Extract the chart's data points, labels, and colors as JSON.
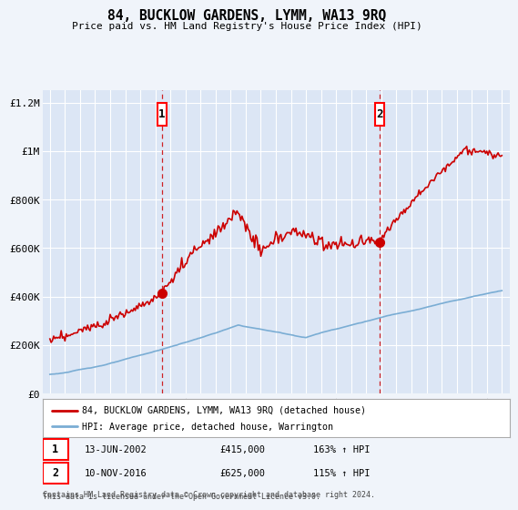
{
  "title": "84, BUCKLOW GARDENS, LYMM, WA13 9RQ",
  "subtitle": "Price paid vs. HM Land Registry's House Price Index (HPI)",
  "legend_line1": "84, BUCKLOW GARDENS, LYMM, WA13 9RQ (detached house)",
  "legend_line2": "HPI: Average price, detached house, Warrington",
  "sale1_date_label": "13-JUN-2002",
  "sale1_price": 415000,
  "sale1_x": 2002.45,
  "sale1_hpi_pct": "163% ↑ HPI",
  "sale2_date_label": "10-NOV-2016",
  "sale2_price": 625000,
  "sale2_x": 2016.87,
  "sale2_hpi_pct": "115% ↑ HPI",
  "footnote1": "Contains HM Land Registry data © Crown copyright and database right 2024.",
  "footnote2": "This data is licensed under the Open Government Licence v3.0.",
  "bg_color": "#f0f4fa",
  "plot_bg_color": "#dce6f5",
  "red_color": "#cc0000",
  "blue_color": "#7aadd4",
  "grid_color": "#ffffff",
  "ylim": [
    0,
    1250000
  ],
  "xlim": [
    1994.5,
    2025.5
  ],
  "yticks": [
    0,
    200000,
    400000,
    600000,
    800000,
    1000000,
    1200000
  ],
  "ytick_labels": [
    "£0",
    "£200K",
    "£400K",
    "£600K",
    "£800K",
    "£1M",
    "£1.2M"
  ],
  "xticks": [
    1995,
    1996,
    1997,
    1998,
    1999,
    2000,
    2001,
    2002,
    2003,
    2004,
    2005,
    2006,
    2007,
    2008,
    2009,
    2010,
    2011,
    2012,
    2013,
    2014,
    2015,
    2016,
    2017,
    2018,
    2019,
    2020,
    2021,
    2022,
    2023,
    2024,
    2025
  ]
}
